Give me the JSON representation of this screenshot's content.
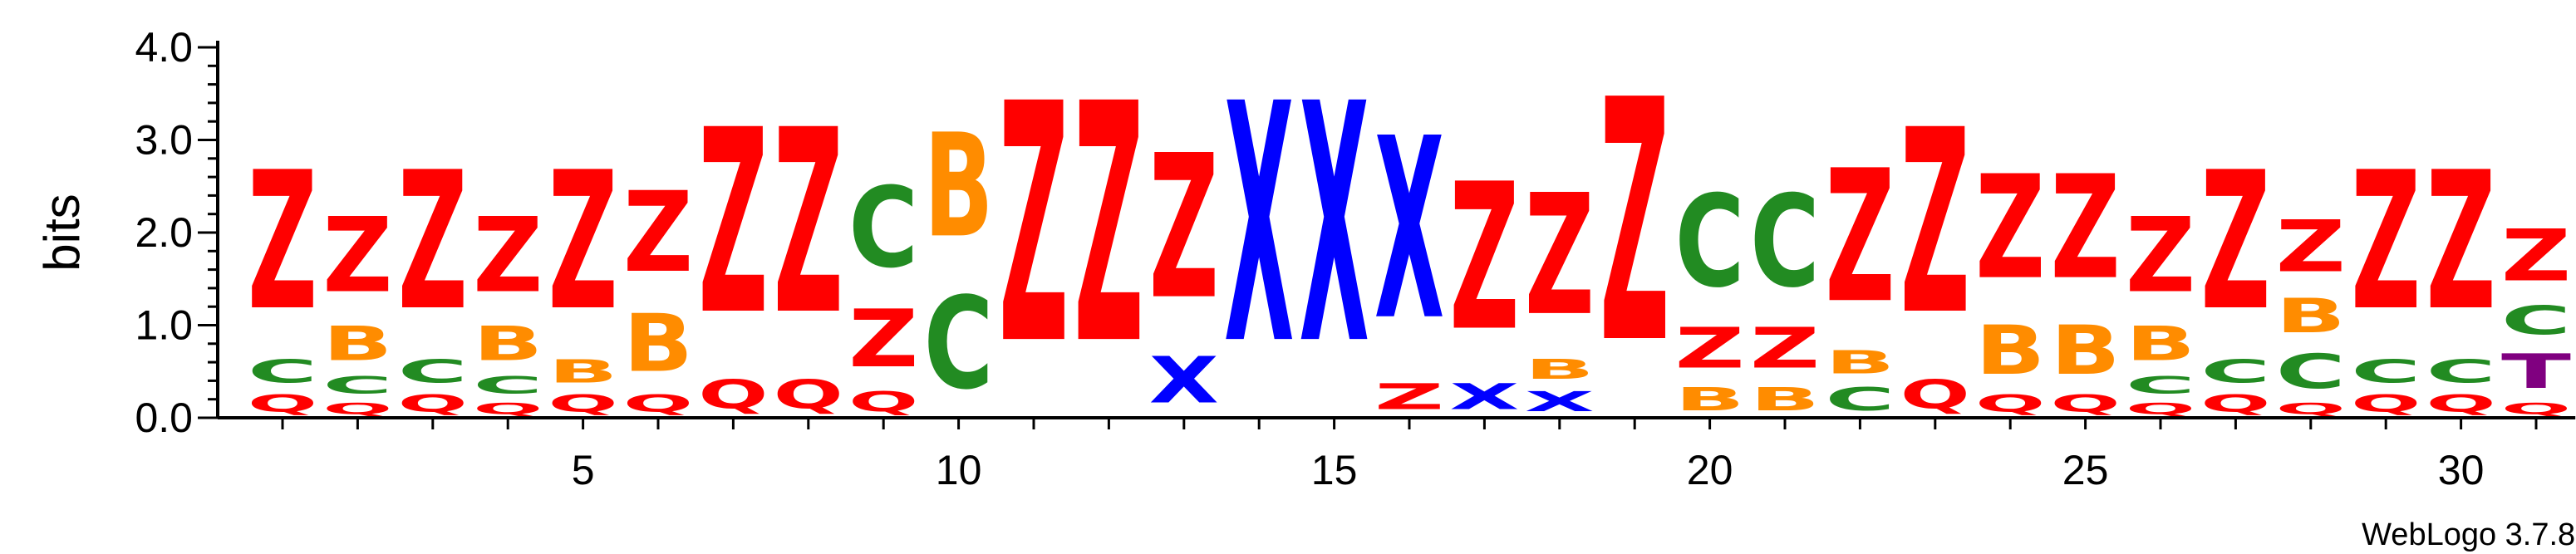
{
  "chart_data": {
    "type": "sequence-logo",
    "ylabel": "bits",
    "ylim": [
      0,
      4.0
    ],
    "y_ticks": [
      "0.0",
      "1.0",
      "2.0",
      "3.0",
      "4.0"
    ],
    "x_ticks": [
      5,
      10,
      15,
      20,
      25,
      30
    ],
    "footer": "WebLogo 3.7.8",
    "colors": {
      "Z": "#ff0000",
      "Q": "#ff0000",
      "X": "#0000ff",
      "C": "#228b22",
      "B": "#ff8c00",
      "T": "#800080"
    },
    "positions": [
      {
        "pos": 1,
        "stack": [
          [
            "Q",
            0.3
          ],
          [
            "C",
            0.4
          ],
          [
            "Z",
            2.4
          ]
        ]
      },
      {
        "pos": 2,
        "stack": [
          [
            "Q",
            0.2
          ],
          [
            "C",
            0.3
          ],
          [
            "B",
            0.6
          ],
          [
            "Z",
            1.3
          ]
        ]
      },
      {
        "pos": 3,
        "stack": [
          [
            "Q",
            0.3
          ],
          [
            "C",
            0.4
          ],
          [
            "Z",
            2.4
          ]
        ]
      },
      {
        "pos": 4,
        "stack": [
          [
            "Q",
            0.2
          ],
          [
            "C",
            0.3
          ],
          [
            "B",
            0.6
          ],
          [
            "Z",
            1.3
          ]
        ]
      },
      {
        "pos": 5,
        "stack": [
          [
            "Q",
            0.3
          ],
          [
            "B",
            0.4
          ],
          [
            "Z",
            2.4
          ]
        ]
      },
      {
        "pos": 6,
        "stack": [
          [
            "Q",
            0.3
          ],
          [
            "B",
            1.0
          ],
          [
            "Z",
            1.4
          ]
        ]
      },
      {
        "pos": 7,
        "stack": [
          [
            "Q",
            0.5
          ],
          [
            "Z",
            3.2
          ]
        ]
      },
      {
        "pos": 8,
        "stack": [
          [
            "Q",
            0.5
          ],
          [
            "Z",
            3.2
          ]
        ]
      },
      {
        "pos": 9,
        "stack": [
          [
            "Q",
            0.35
          ],
          [
            "Z",
            1.0
          ],
          [
            "C",
            1.4
          ]
        ]
      },
      {
        "pos": 10,
        "stack": [
          [
            "C",
            1.6
          ],
          [
            "B",
            1.8
          ]
        ]
      },
      {
        "pos": 11,
        "stack": [
          [
            "Z",
            4.15
          ]
        ]
      },
      {
        "pos": 12,
        "stack": [
          [
            "Z",
            4.15
          ]
        ]
      },
      {
        "pos": 13,
        "stack": [
          [
            "X",
            0.8
          ],
          [
            "Z",
            2.5
          ]
        ]
      },
      {
        "pos": 14,
        "stack": [
          [
            "X",
            4.15
          ]
        ]
      },
      {
        "pos": 15,
        "stack": [
          [
            "X",
            4.15
          ]
        ]
      },
      {
        "pos": 16,
        "stack": [
          [
            "Z",
            0.45
          ],
          [
            "X",
            3.15
          ]
        ]
      },
      {
        "pos": 17,
        "stack": [
          [
            "X",
            0.45
          ],
          [
            "Z",
            2.55
          ]
        ]
      },
      {
        "pos": 18,
        "stack": [
          [
            "X",
            0.35
          ],
          [
            "B",
            0.35
          ],
          [
            "Z",
            2.1
          ]
        ]
      },
      {
        "pos": 19,
        "stack": [
          [
            "Z",
            4.2
          ]
        ]
      },
      {
        "pos": 20,
        "stack": [
          [
            "B",
            0.4
          ],
          [
            "Z",
            0.7
          ],
          [
            "C",
            1.6
          ]
        ]
      },
      {
        "pos": 21,
        "stack": [
          [
            "B",
            0.4
          ],
          [
            "Z",
            0.7
          ],
          [
            "C",
            1.6
          ]
        ]
      },
      {
        "pos": 22,
        "stack": [
          [
            "C",
            0.4
          ],
          [
            "B",
            0.4
          ],
          [
            "Z",
            2.3
          ]
        ]
      },
      {
        "pos": 23,
        "stack": [
          [
            "Q",
            0.5
          ],
          [
            "Z",
            3.2
          ]
        ]
      },
      {
        "pos": 24,
        "stack": [
          [
            "Q",
            0.3
          ],
          [
            "B",
            0.85
          ],
          [
            "Z",
            1.8
          ]
        ]
      },
      {
        "pos": 25,
        "stack": [
          [
            "Q",
            0.3
          ],
          [
            "B",
            0.85
          ],
          [
            "Z",
            1.8
          ]
        ]
      },
      {
        "pos": 26,
        "stack": [
          [
            "Q",
            0.2
          ],
          [
            "C",
            0.3
          ],
          [
            "B",
            0.6
          ],
          [
            "Z",
            1.3
          ]
        ]
      },
      {
        "pos": 27,
        "stack": [
          [
            "Q",
            0.3
          ],
          [
            "C",
            0.4
          ],
          [
            "Z",
            2.4
          ]
        ]
      },
      {
        "pos": 28,
        "stack": [
          [
            "Q",
            0.2
          ],
          [
            "C",
            0.6
          ],
          [
            "B",
            0.6
          ],
          [
            "Z",
            0.9
          ]
        ]
      },
      {
        "pos": 29,
        "stack": [
          [
            "Q",
            0.3
          ],
          [
            "C",
            0.4
          ],
          [
            "Z",
            2.4
          ]
        ]
      },
      {
        "pos": 30,
        "stack": [
          [
            "Q",
            0.3
          ],
          [
            "C",
            0.4
          ],
          [
            "Z",
            2.4
          ]
        ]
      },
      {
        "pos": 31,
        "stack": [
          [
            "Q",
            0.2
          ],
          [
            "T",
            0.6
          ],
          [
            "C",
            0.5
          ],
          [
            "Z",
            0.9
          ]
        ]
      }
    ]
  }
}
